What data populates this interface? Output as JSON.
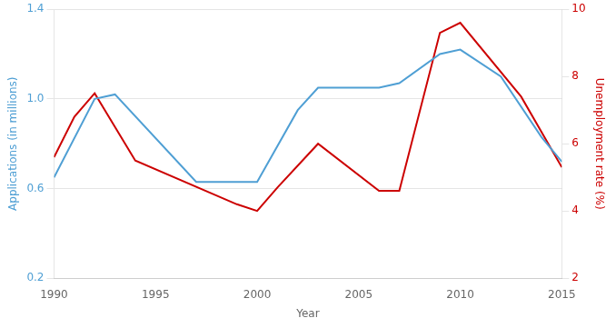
{
  "chart_data": {
    "type": "line",
    "xlabel": "Year",
    "ylabel": "Applications (in millions)",
    "y2label": "Unemployment rate (%)",
    "xlim": [
      1990,
      2015
    ],
    "xticks": [
      1990,
      1995,
      2000,
      2005,
      2010,
      2015
    ],
    "ylim": [
      0.2,
      1.4
    ],
    "yticks": [
      0.2,
      0.6,
      {
        "value": 1.0,
        "label": "1.0"
      },
      1.4
    ],
    "y2lim": [
      2,
      10
    ],
    "y2ticks": [
      2,
      4,
      6,
      8,
      10
    ],
    "grid": true,
    "series": [
      {
        "color": "#4f9fd4",
        "x": [
          1990,
          1992,
          1993,
          1997,
          1999,
          2000,
          2002,
          2003,
          2005,
          2006,
          2007,
          2009,
          2010,
          2012,
          2014,
          2015
        ],
        "values": [
          0.65,
          1.0,
          1.02,
          0.63,
          0.63,
          0.63,
          0.95,
          1.05,
          1.05,
          1.05,
          1.07,
          1.2,
          1.22,
          1.1,
          0.83,
          0.72
        ]
      },
      {
        "color": "#cc0000",
        "axis": "y2",
        "x": [
          1990,
          1991,
          1992,
          1994,
          1999,
          2000,
          2001,
          2003,
          2006,
          2007,
          2009,
          2010,
          2013,
          2015
        ],
        "values": [
          5.6,
          6.8,
          7.5,
          5.5,
          4.2,
          4.0,
          4.7,
          6.0,
          4.6,
          4.6,
          9.3,
          9.6,
          7.4,
          5.3
        ]
      }
    ]
  }
}
